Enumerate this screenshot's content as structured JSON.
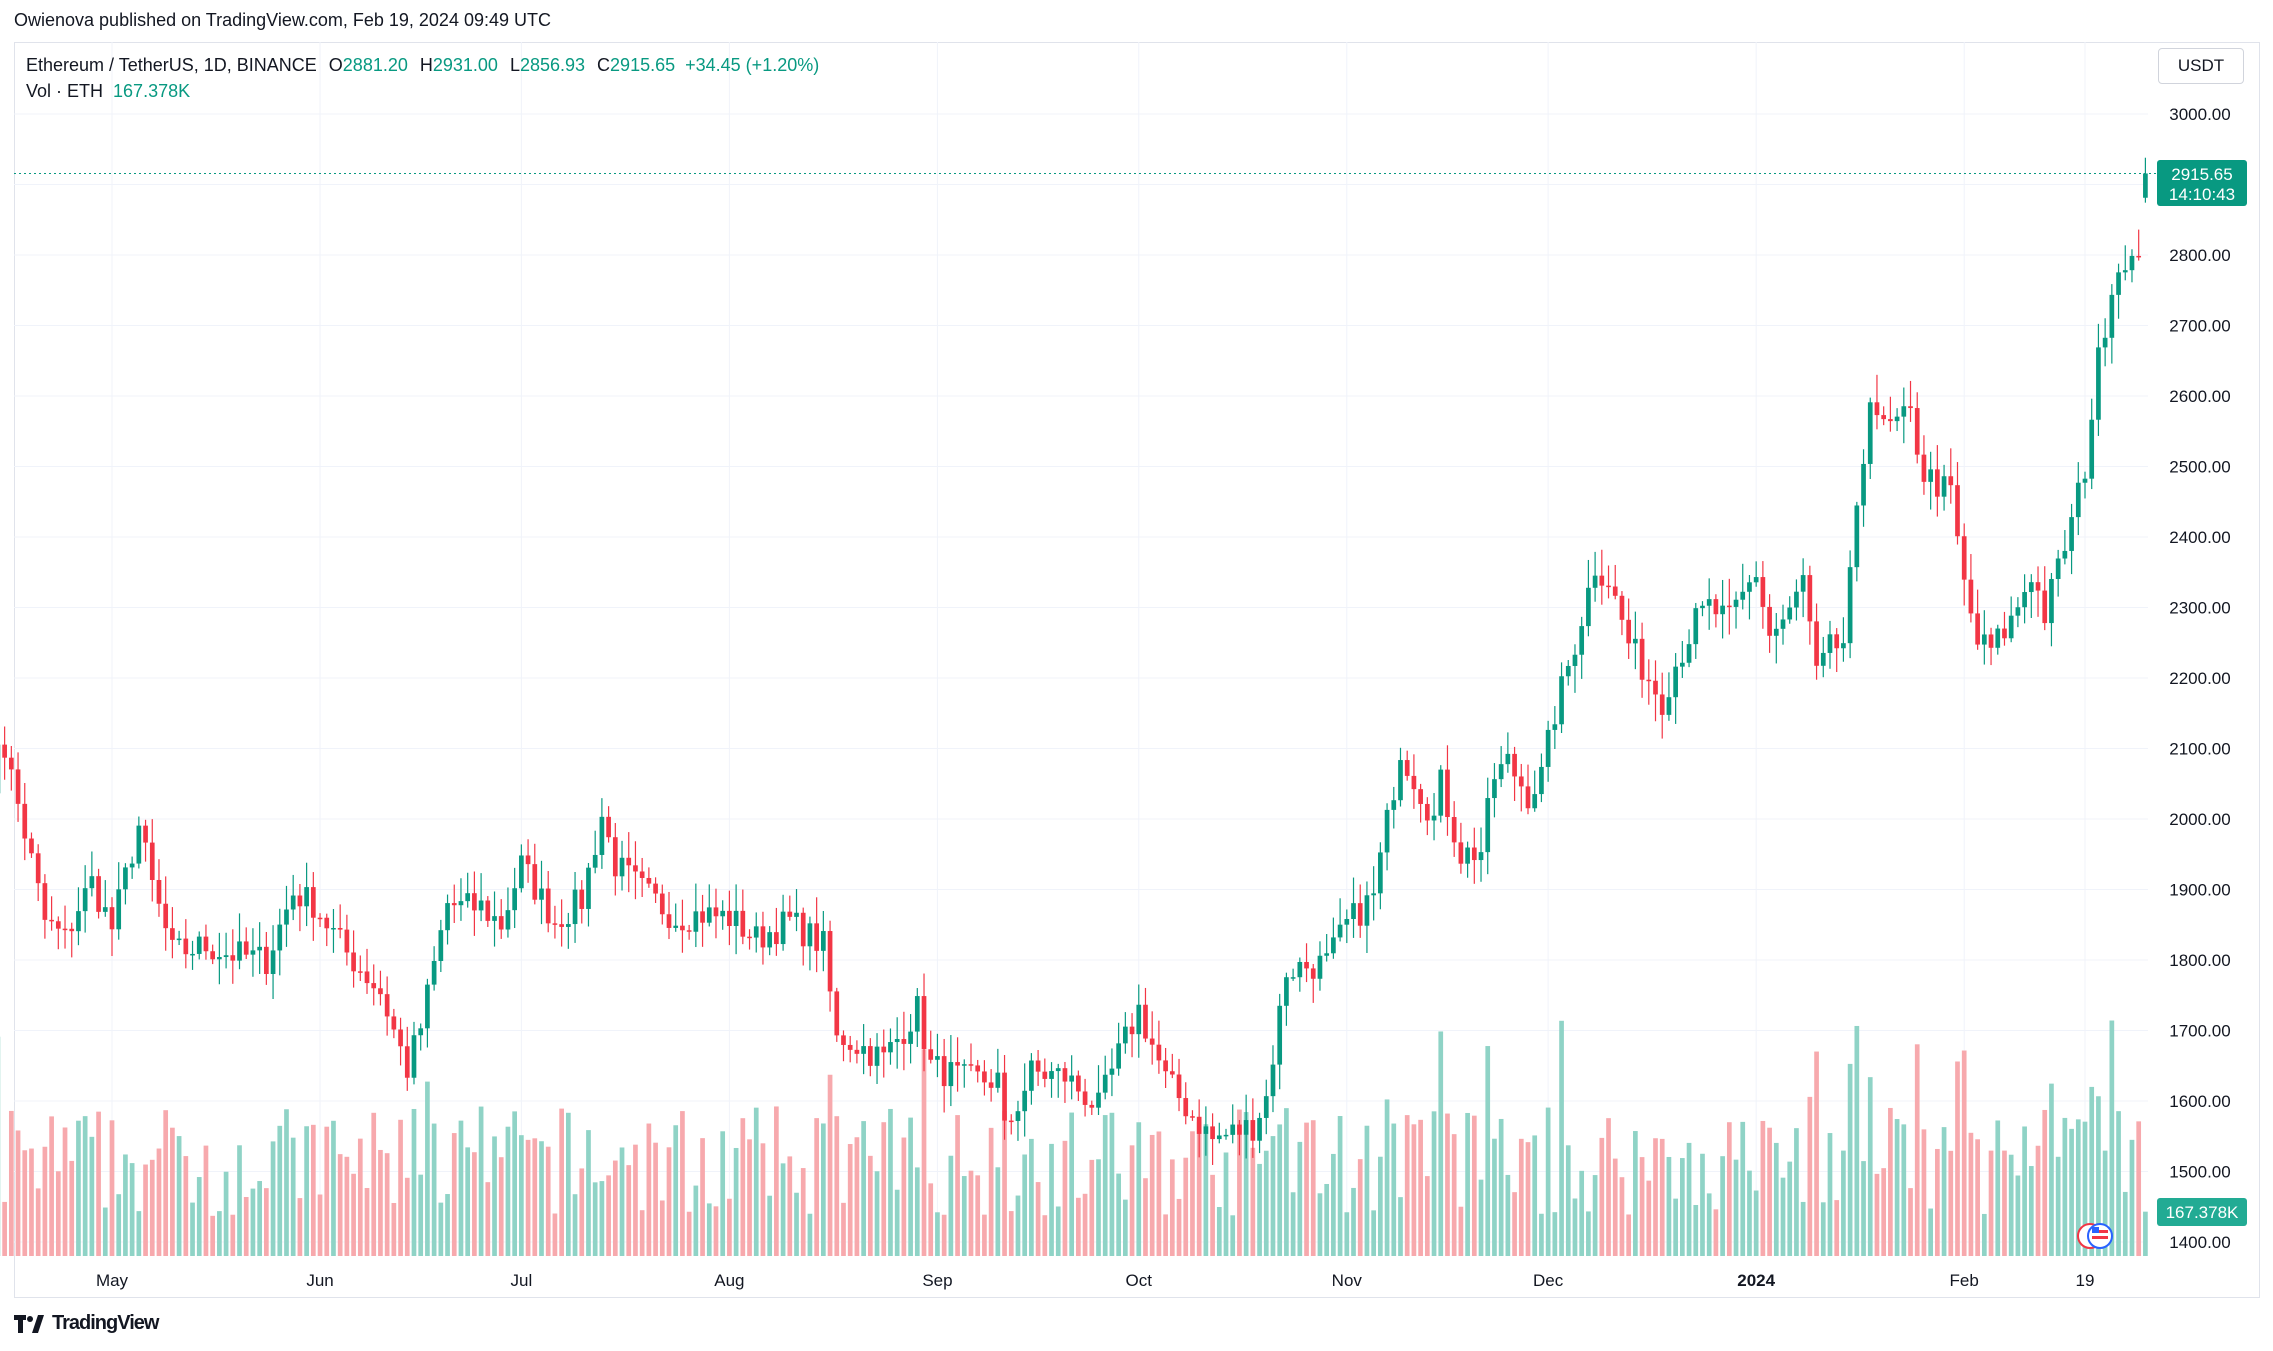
{
  "header": {
    "published": "Owienova published on TradingView.com, Feb 19, 2024 09:49 UTC"
  },
  "legend": {
    "symbol": "Ethereum / TetherUS, 1D, BINANCE",
    "o_label": "O",
    "o_value": "2881.20",
    "h_label": "H",
    "h_value": "2931.00",
    "l_label": "L",
    "l_value": "2856.93",
    "c_label": "C",
    "c_value": "2915.65",
    "change": "+34.45 (+1.20%)",
    "vol_label": "Vol · ETH",
    "vol_value": "167.378K"
  },
  "currency": "USDT",
  "price_badge": {
    "price": "2915.65",
    "countdown": "14:10:43"
  },
  "volume_badge": "167.378K",
  "footer": {
    "brand": "TradingView",
    "logo": "tradingview-logo"
  },
  "colors": {
    "up": "#089981",
    "down": "#f23645",
    "up_vol": "#8fd3c6",
    "down_vol": "#f7a9ad",
    "grid": "#f0f3fa"
  },
  "chart_data": {
    "type": "candlestick",
    "symbol": "ETHUSDT",
    "interval": "1D",
    "y_ticks": [
      "3000.00",
      "2900.00",
      "2800.00",
      "2700.00",
      "2600.00",
      "2500.00",
      "2400.00",
      "2300.00",
      "2200.00",
      "2100.00",
      "2000.00",
      "1900.00",
      "1800.00",
      "1700.00",
      "1600.00",
      "1500.00",
      "1400.00"
    ],
    "ylim": [
      1400,
      3000
    ],
    "x_ticks": [
      "May",
      "Jun",
      "Jul",
      "Aug",
      "Sep",
      "Oct",
      "Nov",
      "Dec",
      "2024",
      "Feb",
      "19"
    ],
    "x_ticks_date": [
      "2023-05-01",
      "2023-06-01",
      "2023-07-01",
      "2023-08-01",
      "2023-09-01",
      "2023-10-01",
      "2023-11-01",
      "2023-12-01",
      "2024-01-01",
      "2024-02-01",
      "2024-02-19"
    ],
    "start_date": "2023-04-12",
    "last_price": 2915.65,
    "anchors": [
      [
        "2023-04-12",
        1930,
        1920
      ],
      [
        "2023-04-14",
        2110,
        2115
      ],
      [
        "2023-04-15",
        2095,
        2100
      ],
      [
        "2023-04-19",
        1945,
        1940
      ],
      [
        "2023-04-21",
        1850,
        1855
      ],
      [
        "2023-04-24",
        1840,
        1830
      ],
      [
        "2023-04-26",
        1890,
        1875
      ],
      [
        "2023-04-28",
        1905,
        1910
      ],
      [
        "2023-05-01",
        1830,
        1845
      ],
      [
        "2023-05-05",
        1985,
        1990
      ],
      [
        "2023-05-07",
        1900,
        1905
      ],
      [
        "2023-05-10",
        1800,
        1810
      ],
      [
        "2023-05-15",
        1815,
        1820
      ],
      [
        "2023-05-18",
        1800,
        1810
      ],
      [
        "2023-05-24",
        1805,
        1800
      ],
      [
        "2023-05-28",
        1895,
        1895
      ],
      [
        "2023-05-31",
        1870,
        1880
      ],
      [
        "2023-06-05",
        1805,
        1810
      ],
      [
        "2023-06-10",
        1750,
        1755
      ],
      [
        "2023-06-14",
        1650,
        1645
      ],
      [
        "2023-06-16",
        1700,
        1705
      ],
      [
        "2023-06-20",
        1880,
        1880
      ],
      [
        "2023-06-22",
        1880,
        1875
      ],
      [
        "2023-06-25",
        1870,
        1875
      ],
      [
        "2023-06-28",
        1860,
        1850
      ],
      [
        "2023-07-01",
        1930,
        1935
      ],
      [
        "2023-07-06",
        1850,
        1855
      ],
      [
        "2023-07-10",
        1880,
        1885
      ],
      [
        "2023-07-13",
        2000,
        2005
      ],
      [
        "2023-07-15",
        1935,
        1935
      ],
      [
        "2023-07-20",
        1890,
        1890
      ],
      [
        "2023-07-24",
        1860,
        1860
      ],
      [
        "2023-07-28",
        1865,
        1865
      ],
      [
        "2023-08-01",
        1860,
        1860
      ],
      [
        "2023-08-05",
        1830,
        1830
      ],
      [
        "2023-08-10",
        1855,
        1855
      ],
      [
        "2023-08-15",
        1820,
        1820
      ],
      [
        "2023-08-17",
        1680,
        1685
      ],
      [
        "2023-08-18",
        1690,
        1690
      ],
      [
        "2023-08-24",
        1660,
        1660
      ],
      [
        "2023-08-29",
        1730,
        1730
      ],
      [
        "2023-08-31",
        1650,
        1650
      ],
      [
        "2023-09-05",
        1630,
        1630
      ],
      [
        "2023-09-10",
        1620,
        1630
      ],
      [
        "2023-09-11",
        1550,
        1555
      ],
      [
        "2023-09-15",
        1640,
        1640
      ],
      [
        "2023-09-20",
        1630,
        1635
      ],
      [
        "2023-09-25",
        1590,
        1590
      ],
      [
        "2023-09-28",
        1660,
        1665
      ],
      [
        "2023-10-01",
        1730,
        1730
      ],
      [
        "2023-10-05",
        1630,
        1630
      ],
      [
        "2023-10-09",
        1580,
        1580
      ],
      [
        "2023-10-12",
        1540,
        1545
      ],
      [
        "2023-10-18",
        1570,
        1565
      ],
      [
        "2023-10-20",
        1600,
        1605
      ],
      [
        "2023-10-23",
        1780,
        1785
      ],
      [
        "2023-10-25",
        1790,
        1790
      ],
      [
        "2023-10-29",
        1790,
        1795
      ],
      [
        "2023-11-01",
        1850,
        1850
      ],
      [
        "2023-11-05",
        1880,
        1890
      ],
      [
        "2023-11-09",
        2100,
        2100
      ],
      [
        "2023-11-11",
        2060,
        2060
      ],
      [
        "2023-11-14",
        2000,
        2000
      ],
      [
        "2023-11-15",
        2050,
        2050
      ],
      [
        "2023-11-18",
        1950,
        1950
      ],
      [
        "2023-11-21",
        1950,
        1955
      ],
      [
        "2023-11-23",
        2060,
        2060
      ],
      [
        "2023-11-25",
        2080,
        2080
      ],
      [
        "2023-11-28",
        2030,
        2035
      ],
      [
        "2023-11-30",
        2060,
        2060
      ],
      [
        "2023-12-02",
        2150,
        2150
      ],
      [
        "2023-12-05",
        2250,
        2250
      ],
      [
        "2023-12-08",
        2360,
        2360
      ],
      [
        "2023-12-10",
        2340,
        2340
      ],
      [
        "2023-12-13",
        2250,
        2250
      ],
      [
        "2023-12-16",
        2200,
        2200
      ],
      [
        "2023-12-18",
        2170,
        2170
      ],
      [
        "2023-12-20",
        2220,
        2220
      ],
      [
        "2023-12-23",
        2280,
        2280
      ],
      [
        "2023-12-25",
        2300,
        2300
      ],
      [
        "2023-12-28",
        2280,
        2280
      ],
      [
        "2024-01-01",
        2350,
        2350
      ],
      [
        "2024-01-03",
        2260,
        2260
      ],
      [
        "2024-01-06",
        2290,
        2290
      ],
      [
        "2024-01-08",
        2340,
        2340
      ],
      [
        "2024-01-10",
        2200,
        2200
      ],
      [
        "2024-01-12",
        2240,
        2240
      ],
      [
        "2024-01-14",
        2250,
        2250
      ],
      [
        "2024-01-17",
        2510,
        2510
      ],
      [
        "2024-01-18",
        2610,
        2610
      ],
      [
        "2024-01-20",
        2550,
        2550
      ],
      [
        "2024-01-24",
        2570,
        2570
      ],
      [
        "2024-01-26",
        2490,
        2490
      ],
      [
        "2024-01-30",
        2460,
        2460
      ],
      [
        "2024-02-01",
        2330,
        2330
      ],
      [
        "2024-02-03",
        2250,
        2250
      ],
      [
        "2024-02-05",
        2240,
        2240
      ],
      [
        "2024-02-08",
        2280,
        2280
      ],
      [
        "2024-02-11",
        2350,
        2350
      ],
      [
        "2024-02-13",
        2290,
        2290
      ],
      [
        "2024-02-17",
        2420,
        2420
      ],
      [
        "2024-02-19",
        2500,
        2500
      ],
      [
        "2024-02-21",
        2650,
        2650
      ],
      [
        "2024-02-23",
        2760,
        2760
      ],
      [
        "2024-02-25",
        2800,
        2800
      ],
      [
        "2024-02-26",
        2790,
        2790
      ],
      [
        "2024-02-27",
        2780,
        2780
      ],
      [
        "2024-02-28",
        2881.2,
        2915.65
      ]
    ]
  }
}
